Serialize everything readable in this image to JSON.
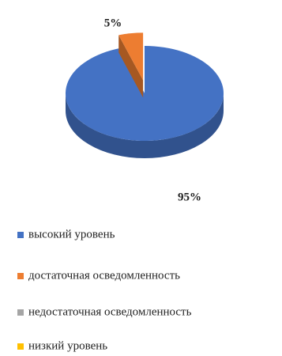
{
  "chart_data": {
    "type": "pie",
    "categories": [
      "высокий уровень",
      "достаточная осведомленность",
      "недостаточная осведомленность",
      "низкий уровень"
    ],
    "values": [
      95,
      5,
      0,
      0
    ],
    "value_labels": [
      "95%",
      "5%",
      null,
      null
    ],
    "colors": [
      "#4472c4",
      "#ed7d31",
      "#a5a5a5",
      "#ffc000"
    ],
    "legend": "bottom"
  }
}
